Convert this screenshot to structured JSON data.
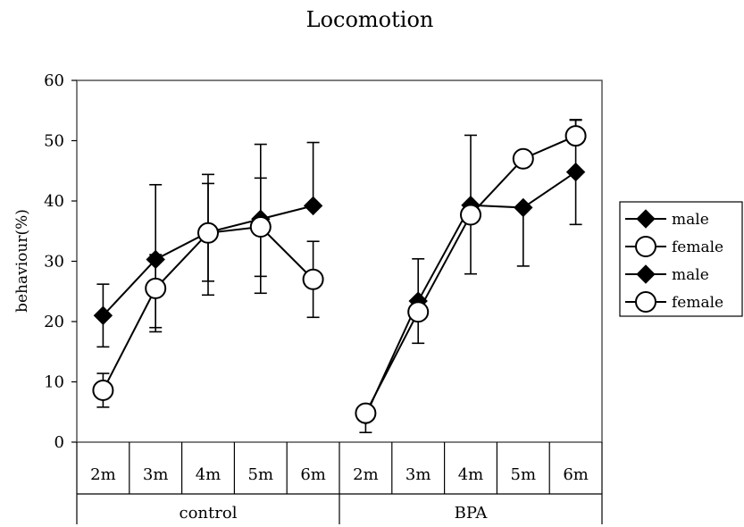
{
  "chart_data": {
    "type": "line",
    "title": "Locomotion",
    "ylabel": "behaviour(%)",
    "xlabel": "",
    "ylim": [
      0,
      60
    ],
    "yticks": [
      0,
      10,
      20,
      30,
      40,
      50,
      60
    ],
    "grid": false,
    "legend_position": "right",
    "groups": [
      {
        "label": "control",
        "categories": [
          "2m",
          "3m",
          "4m",
          "5m",
          "6m"
        ]
      },
      {
        "label": "BPA",
        "categories": [
          "2m",
          "3m",
          "4m",
          "5m",
          "6m"
        ]
      }
    ],
    "series": [
      {
        "name": "male",
        "group": "control",
        "marker": "diamond",
        "values": [
          21,
          30.3,
          34.8,
          37,
          39.2
        ],
        "err_low": [
          5.2,
          11.3,
          8.1,
          9.5,
          0
        ],
        "err_high": [
          5.2,
          12.4,
          8.1,
          12.4,
          10.5
        ]
      },
      {
        "name": "female",
        "group": "control",
        "marker": "circle",
        "values": [
          8.6,
          25.5,
          34.7,
          35.7,
          27
        ],
        "err_low": [
          2.8,
          7.2,
          10.3,
          11,
          6.3
        ],
        "err_high": [
          2.8,
          5.6,
          9.7,
          8.1,
          6.3
        ]
      },
      {
        "name": "male",
        "group": "BPA",
        "marker": "diamond",
        "values": [
          4.4,
          23.4,
          39.3,
          38.9,
          44.8
        ],
        "err_low": [
          2.8,
          7,
          11.4,
          9.7,
          8.7
        ],
        "err_high": [
          0,
          7,
          11.6,
          0,
          8.7
        ]
      },
      {
        "name": "female",
        "group": "BPA",
        "marker": "circle",
        "values": [
          4.8,
          21.6,
          37.7,
          47,
          50.8
        ],
        "err_low": [
          0,
          0,
          0,
          0,
          0
        ],
        "err_high": [
          0,
          0,
          0,
          0,
          2.6
        ]
      }
    ]
  }
}
